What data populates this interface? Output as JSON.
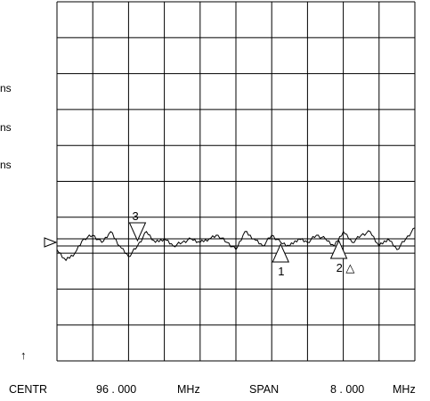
{
  "chart_data": {
    "type": "line",
    "title": "",
    "xlabel": "",
    "ylabel": "",
    "grid": true,
    "x_unit": "MHz",
    "xlim": [
      92.0,
      100.0
    ],
    "x_divisions": 10,
    "y_divisions": 10,
    "ylim": [
      0,
      10
    ],
    "y_tick_labels": [
      "ns",
      "ns",
      "ns"
    ],
    "reference_level": 3.3,
    "reference_symbol": "▷",
    "series": [
      {
        "x": [
          92.0,
          92.2,
          92.4,
          92.6,
          92.8,
          93.0,
          93.2,
          93.4,
          93.6,
          93.8,
          94.0,
          94.2,
          94.4,
          94.6,
          94.8,
          95.0,
          95.2,
          95.4,
          95.6,
          95.8,
          96.0,
          96.2,
          96.4,
          96.6,
          96.8,
          97.0,
          97.2,
          97.4,
          97.6,
          97.8,
          98.0,
          98.2,
          98.4,
          98.6,
          98.8,
          99.0,
          99.2,
          99.4,
          99.6,
          99.8,
          100.0
        ],
        "values": [
          3.1,
          2.8,
          3.0,
          3.4,
          3.5,
          3.3,
          3.6,
          3.2,
          2.9,
          3.2,
          3.6,
          3.3,
          3.4,
          3.2,
          3.3,
          3.4,
          3.3,
          3.4,
          3.5,
          3.3,
          3.1,
          3.6,
          3.4,
          3.2,
          3.5,
          3.3,
          3.2,
          3.4,
          3.3,
          3.5,
          3.4,
          3.2,
          3.6,
          3.3,
          3.5,
          3.6,
          3.2,
          3.4,
          3.1,
          3.4,
          3.7
        ]
      }
    ],
    "markers": [
      {
        "label": "1",
        "x": 97.0,
        "direction": "up",
        "value": 3.25
      },
      {
        "label": "2 △",
        "x": 98.3,
        "direction": "up",
        "value": 3.35
      },
      {
        "label": "3",
        "x": 93.8,
        "direction": "down",
        "value": 3.35
      }
    ],
    "footer": {
      "center_label": "CENTR",
      "center_value": "96 . 000",
      "center_unit": "MHz",
      "span_label": "SPAN",
      "span_value": "8 . 000",
      "span_unit": "MHz"
    },
    "scale_arrow": "↑"
  }
}
